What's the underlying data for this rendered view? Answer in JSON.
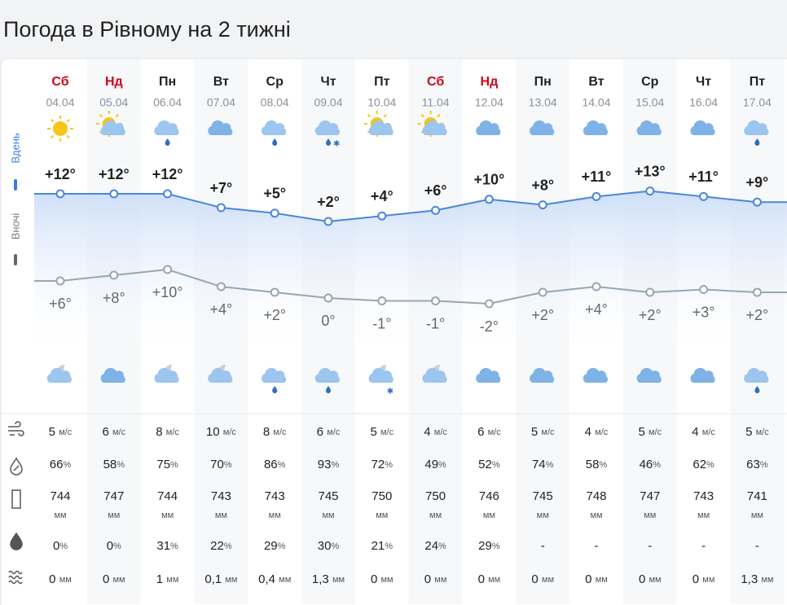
{
  "title": "Погода в Рівному на 2 тижні",
  "labels": {
    "day": "Вдень",
    "night": "Вночі"
  },
  "units": {
    "wind": "м/с",
    "humidity": "%",
    "pressure": "мм",
    "probability": "%",
    "precipitation": "мм"
  },
  "forecast": {
    "names": [
      "Сб",
      "Нд",
      "Пн",
      "Вт",
      "Ср",
      "Чт",
      "Пт",
      "Сб",
      "Нд",
      "Пн",
      "Вт",
      "Ср",
      "Чт",
      "Пт"
    ],
    "name_colors": [
      "#d0021b",
      "#d0021b",
      "#222222",
      "#222222",
      "#222222",
      "#222222",
      "#222222",
      "#d0021b",
      "#d0021b",
      "#222222",
      "#222222",
      "#222222",
      "#222222",
      "#222222"
    ],
    "dates": [
      "04.04",
      "05.04",
      "06.04",
      "07.04",
      "08.04",
      "09.04",
      "10.04",
      "11.04",
      "12.04",
      "13.04",
      "14.04",
      "15.04",
      "16.04",
      "17.04"
    ],
    "day_temps": [
      12,
      12,
      12,
      7,
      5,
      2,
      4,
      6,
      10,
      8,
      11,
      13,
      11,
      9
    ],
    "day_temp_labels": [
      "+12°",
      "+12°",
      "+12°",
      "+7°",
      "+5°",
      "+2°",
      "+4°",
      "+6°",
      "+10°",
      "+8°",
      "+11°",
      "+13°",
      "+11°",
      "+9°"
    ],
    "night_temps": [
      6,
      8,
      10,
      4,
      2,
      0,
      -1,
      -1,
      -2,
      2,
      4,
      2,
      3,
      2
    ],
    "night_temp_labels": [
      "+6°",
      "+8°",
      "+10°",
      "+4°",
      "+2°",
      "0°",
      "-1°",
      "-1°",
      "-2°",
      "+2°",
      "+4°",
      "+2°",
      "+3°",
      "+2°"
    ],
    "wind": [
      5,
      6,
      8,
      10,
      8,
      6,
      5,
      4,
      6,
      5,
      4,
      5,
      4,
      5
    ],
    "humidity": [
      66,
      58,
      75,
      70,
      86,
      93,
      72,
      49,
      52,
      74,
      58,
      46,
      62,
      63
    ],
    "pressure": [
      744,
      747,
      744,
      743,
      743,
      745,
      750,
      750,
      746,
      745,
      748,
      747,
      743,
      741
    ],
    "probability": [
      "0",
      "0",
      "31",
      "22",
      "29",
      "30",
      "21",
      "24",
      "29",
      "-",
      "-",
      "-",
      "-",
      "-"
    ],
    "precipitation": [
      "0",
      "0",
      "1",
      "0,1",
      "0,4",
      "1,3",
      "0",
      "0",
      "0",
      "0",
      "0",
      "0",
      "0",
      "1,3"
    ]
  }
}
